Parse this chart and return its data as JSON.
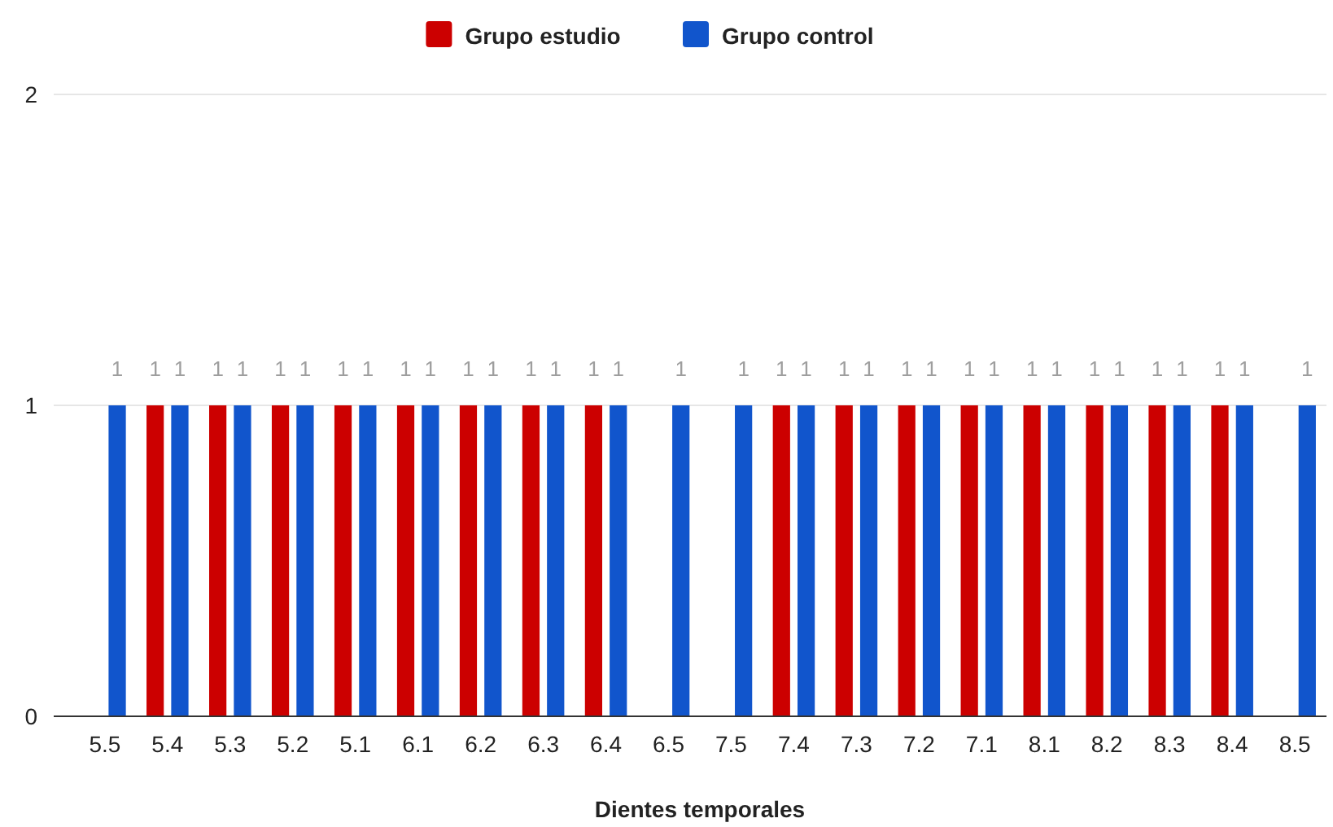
{
  "chart_data": {
    "type": "bar",
    "xlabel": "Dientes temporales",
    "categories": [
      "5.5",
      "5.4",
      "5.3",
      "5.2",
      "5.1",
      "6.1",
      "6.2",
      "6.3",
      "6.4",
      "6.5",
      "7.5",
      "7.4",
      "7.3",
      "7.2",
      "7.1",
      "8.1",
      "8.2",
      "8.3",
      "8.4",
      "8.5"
    ],
    "series": [
      {
        "name": "Grupo estudio",
        "color": "#cc0000",
        "values": [
          null,
          1,
          1,
          1,
          1,
          1,
          1,
          1,
          1,
          null,
          null,
          1,
          1,
          1,
          1,
          1,
          1,
          1,
          1,
          null
        ]
      },
      {
        "name": "Grupo control",
        "color": "#1155cc",
        "values": [
          1,
          1,
          1,
          1,
          1,
          1,
          1,
          1,
          1,
          1,
          1,
          1,
          1,
          1,
          1,
          1,
          1,
          1,
          1,
          1
        ]
      }
    ],
    "ylim": [
      0,
      2
    ],
    "yticks": [
      0,
      1,
      2
    ],
    "grid": "y",
    "legend": "top",
    "data_labels": true
  }
}
